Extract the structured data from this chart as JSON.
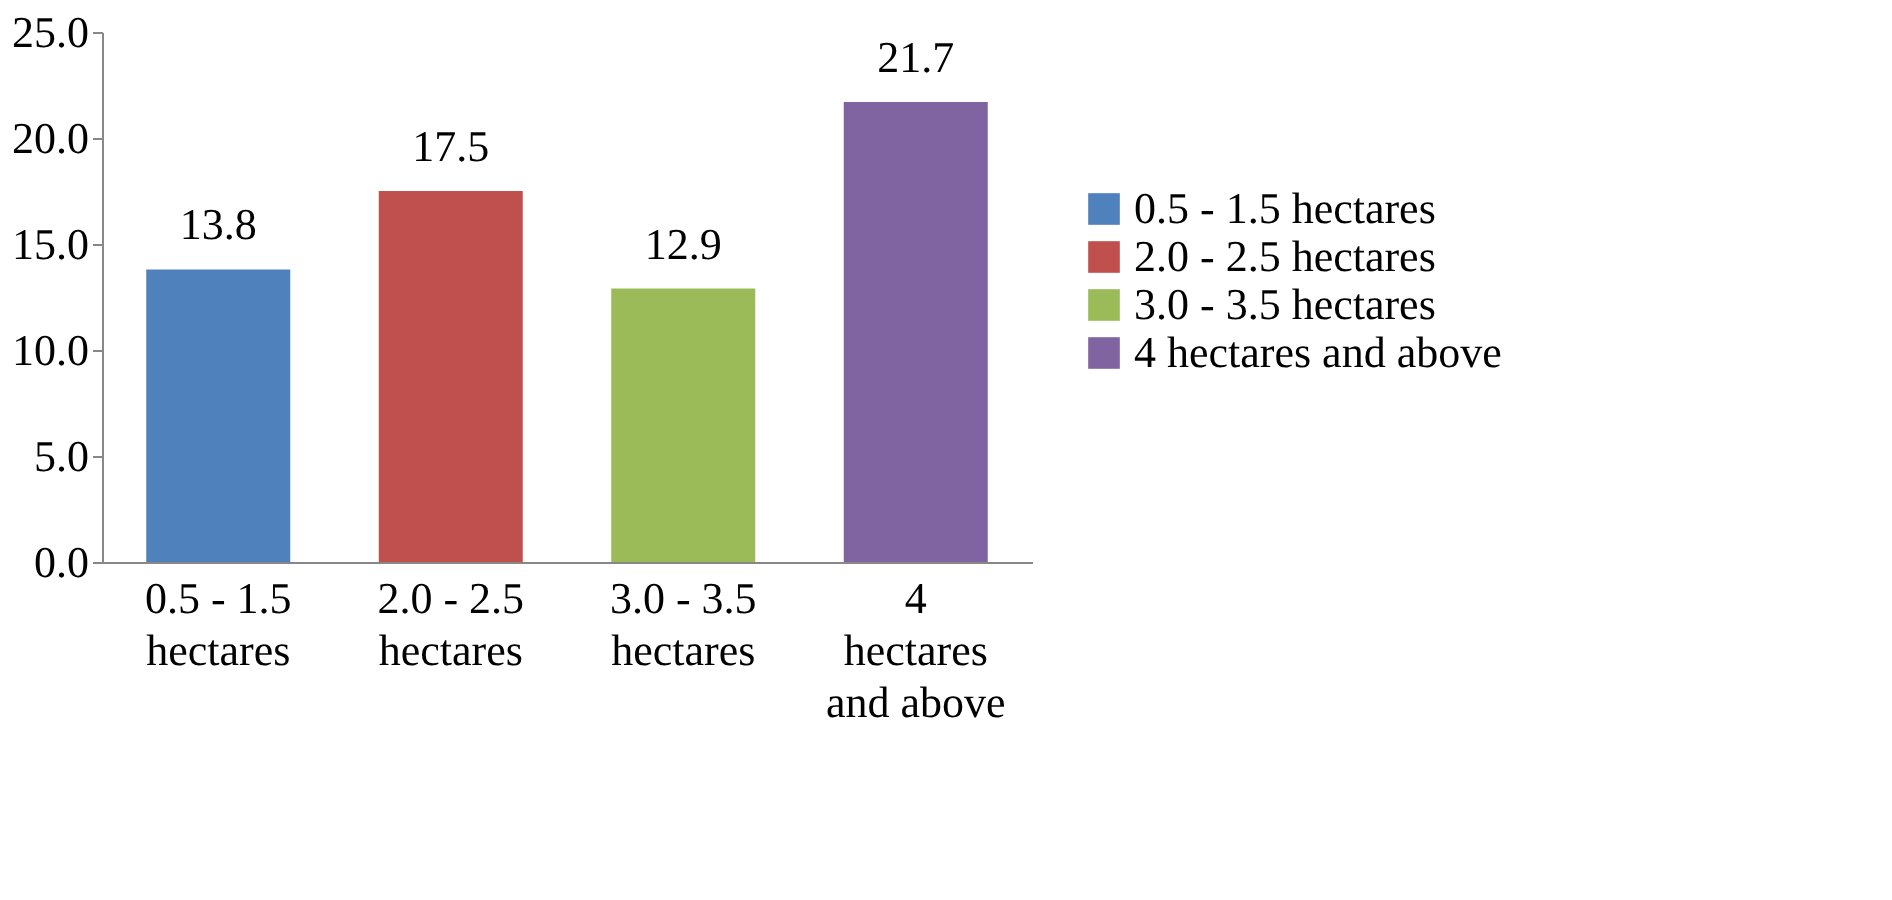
{
  "chart_data": {
    "type": "bar",
    "categories": [
      "0.5 - 1.5 hectares",
      "2.0 - 2.5 hectares",
      "3.0 - 3.5 hectares",
      "4 hectares and above"
    ],
    "series": [
      {
        "name": "0.5 - 1.5 hectares",
        "color": "#4f81bd",
        "values": [
          13.8,
          null,
          null,
          null
        ]
      },
      {
        "name": "2.0 - 2.5 hectares",
        "color": "#c0504d",
        "values": [
          null,
          17.5,
          null,
          null
        ]
      },
      {
        "name": "3.0 - 3.5 hectares",
        "color": "#9bbb59",
        "values": [
          null,
          null,
          12.9,
          null
        ]
      },
      {
        "name": "4 hectares and above",
        "color": "#8064a2",
        "values": [
          null,
          null,
          null,
          21.7
        ]
      }
    ],
    "ylim": [
      0,
      25
    ],
    "yticks": [
      {
        "value": 0,
        "label": "0.0"
      },
      {
        "value": 5,
        "label": "5.0"
      },
      {
        "value": 10,
        "label": "10.0"
      },
      {
        "value": 15,
        "label": "15.0"
      },
      {
        "value": 20,
        "label": "20.0"
      },
      {
        "value": 25,
        "label": "25.0"
      }
    ],
    "data_labels": true,
    "grid": false,
    "legend": "right"
  }
}
